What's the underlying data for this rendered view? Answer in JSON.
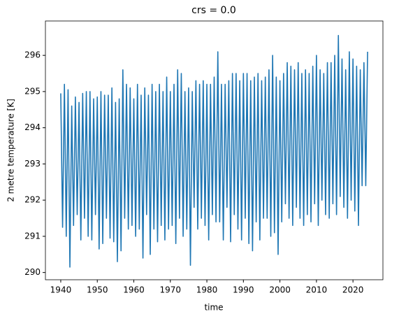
{
  "chart_data": {
    "type": "line",
    "title": "crs = 0.0",
    "xlabel": "time",
    "ylabel": "2 metre temperature [K]",
    "x": [
      1940,
      1940.5,
      1941,
      1941.5,
      1942,
      1942.5,
      1943,
      1943.5,
      1944,
      1944.5,
      1945,
      1945.5,
      1946,
      1946.5,
      1947,
      1947.5,
      1948,
      1948.5,
      1949,
      1949.5,
      1950,
      1950.5,
      1951,
      1951.5,
      1952,
      1952.5,
      1953,
      1953.5,
      1954,
      1954.5,
      1955,
      1955.5,
      1956,
      1956.5,
      1957,
      1957.5,
      1958,
      1958.5,
      1959,
      1959.5,
      1960,
      1960.5,
      1961,
      1961.5,
      1962,
      1962.5,
      1963,
      1963.5,
      1964,
      1964.5,
      1965,
      1965.5,
      1966,
      1966.5,
      1967,
      1967.5,
      1968,
      1968.5,
      1969,
      1969.5,
      1970,
      1970.5,
      1971,
      1971.5,
      1972,
      1972.5,
      1973,
      1973.5,
      1974,
      1974.5,
      1975,
      1975.5,
      1976,
      1976.5,
      1977,
      1977.5,
      1978,
      1978.5,
      1979,
      1979.5,
      1980,
      1980.5,
      1981,
      1981.5,
      1982,
      1982.5,
      1983,
      1983.5,
      1984,
      1984.5,
      1985,
      1985.5,
      1986,
      1986.5,
      1987,
      1987.5,
      1988,
      1988.5,
      1989,
      1989.5,
      1990,
      1990.5,
      1991,
      1991.5,
      1992,
      1992.5,
      1993,
      1993.5,
      1994,
      1994.5,
      1995,
      1995.5,
      1996,
      1996.5,
      1997,
      1997.5,
      1998,
      1998.5,
      1999,
      1999.5,
      2000,
      2000.5,
      2001,
      2001.5,
      2002,
      2002.5,
      2003,
      2003.5,
      2004,
      2004.5,
      2005,
      2005.5,
      2006,
      2006.5,
      2007,
      2007.5,
      2008,
      2008.5,
      2009,
      2009.5,
      2010,
      2010.5,
      2011,
      2011.5,
      2012,
      2012.5,
      2013,
      2013.5,
      2014,
      2014.5,
      2015,
      2015.5,
      2016,
      2016.5,
      2017,
      2017.5,
      2018,
      2018.5,
      2019,
      2019.5,
      2020,
      2020.5,
      2021,
      2021.5,
      2022,
      2022.5,
      2023,
      2023.5,
      2024
    ],
    "series": [
      {
        "name": "2 metre temperature",
        "color": "#1f77b4",
        "values": [
          294.95,
          291.25,
          295.2,
          291.0,
          295.05,
          290.15,
          294.6,
          291.3,
          294.85,
          291.6,
          294.7,
          290.9,
          294.95,
          291.5,
          295.0,
          291.0,
          295.0,
          290.9,
          294.8,
          291.6,
          294.85,
          290.65,
          295.0,
          290.8,
          294.9,
          291.5,
          294.9,
          290.95,
          295.1,
          290.85,
          294.7,
          290.3,
          294.8,
          290.6,
          295.6,
          291.5,
          295.2,
          291.2,
          295.1,
          291.3,
          294.8,
          291.0,
          295.2,
          291.2,
          294.9,
          290.4,
          295.1,
          291.6,
          294.9,
          290.5,
          295.2,
          291.2,
          295.0,
          290.85,
          295.2,
          291.3,
          295.0,
          290.9,
          295.4,
          291.2,
          295.0,
          291.3,
          295.2,
          290.8,
          295.6,
          291.5,
          295.5,
          291.0,
          295.0,
          291.2,
          295.1,
          290.2,
          295.0,
          291.8,
          295.3,
          291.2,
          295.2,
          291.5,
          295.3,
          291.3,
          295.2,
          290.9,
          295.2,
          291.6,
          295.4,
          291.4,
          296.1,
          291.4,
          295.2,
          290.9,
          295.2,
          291.8,
          295.3,
          290.85,
          295.5,
          291.6,
          295.5,
          291.2,
          295.3,
          290.9,
          295.5,
          291.5,
          295.5,
          290.8,
          295.3,
          290.6,
          295.4,
          291.4,
          295.5,
          290.9,
          295.3,
          291.5,
          295.4,
          291.5,
          295.6,
          291.0,
          296.0,
          291.1,
          295.4,
          290.5,
          295.3,
          291.4,
          295.5,
          291.9,
          295.8,
          291.5,
          295.7,
          291.3,
          295.6,
          291.8,
          295.8,
          291.5,
          295.5,
          291.3,
          295.6,
          291.6,
          295.5,
          291.4,
          295.7,
          291.9,
          296.0,
          291.3,
          295.6,
          292.0,
          295.5,
          291.6,
          295.8,
          291.5,
          295.8,
          291.9,
          296.0,
          291.6,
          296.55,
          292.1,
          295.9,
          291.8,
          295.6,
          291.5,
          296.1,
          292.0,
          295.9,
          291.7,
          295.7,
          291.3,
          295.6,
          292.4,
          295.8,
          292.4,
          296.1
        ]
      }
    ],
    "xlim": [
      1935.8,
      2028.2
    ],
    "ylim": [
      289.8,
      296.95
    ],
    "xticks": [
      1940,
      1950,
      1960,
      1970,
      1980,
      1990,
      2000,
      2010,
      2020
    ],
    "yticks": [
      290,
      291,
      292,
      293,
      294,
      295,
      296
    ]
  }
}
